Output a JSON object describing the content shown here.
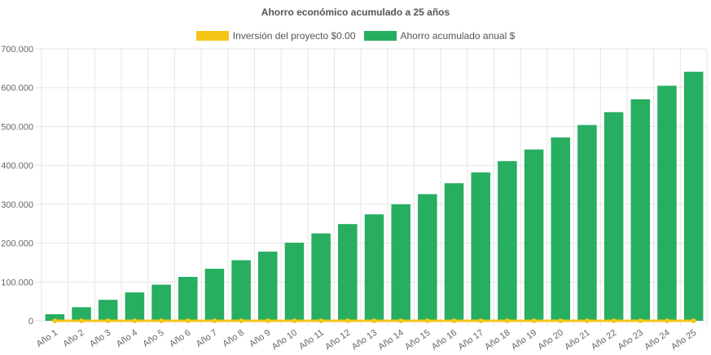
{
  "chart_data": {
    "type": "bar",
    "title": "Ahorro económico acumulado a 25 años",
    "legend_position": "top",
    "grid": true,
    "ylim": [
      0,
      700000
    ],
    "yticks": [
      "0",
      "100.000",
      "200.000",
      "300.000",
      "400.000",
      "500.000",
      "600.000",
      "700.000"
    ],
    "categories": [
      "Año 1",
      "Año 2",
      "Año 3",
      "Año 4",
      "Año 5",
      "Año 6",
      "Año 7",
      "Año 8",
      "Año 9",
      "Año 10",
      "Año 11",
      "Año 12",
      "Año 13",
      "Año 14",
      "Año 15",
      "Año 16",
      "Año 17",
      "Año 18",
      "Año 19",
      "Año 20",
      "Año 21",
      "Año 22",
      "Año 23",
      "Año 24",
      "Año 25"
    ],
    "series": [
      {
        "name": "Inversión del proyecto $0.00",
        "type": "line",
        "color": "#f5c518",
        "values": [
          0,
          0,
          0,
          0,
          0,
          0,
          0,
          0,
          0,
          0,
          0,
          0,
          0,
          0,
          0,
          0,
          0,
          0,
          0,
          0,
          0,
          0,
          0,
          0,
          0
        ]
      },
      {
        "name": "Ahorro acumulado anual $",
        "type": "bar",
        "color": "#27ae60",
        "values": [
          17000,
          35000,
          54000,
          73000,
          93000,
          113000,
          134000,
          156000,
          178000,
          201000,
          225000,
          249000,
          274000,
          300000,
          326000,
          354000,
          382000,
          411000,
          441000,
          472000,
          504000,
          537000,
          570000,
          605000,
          641000
        ]
      }
    ]
  }
}
